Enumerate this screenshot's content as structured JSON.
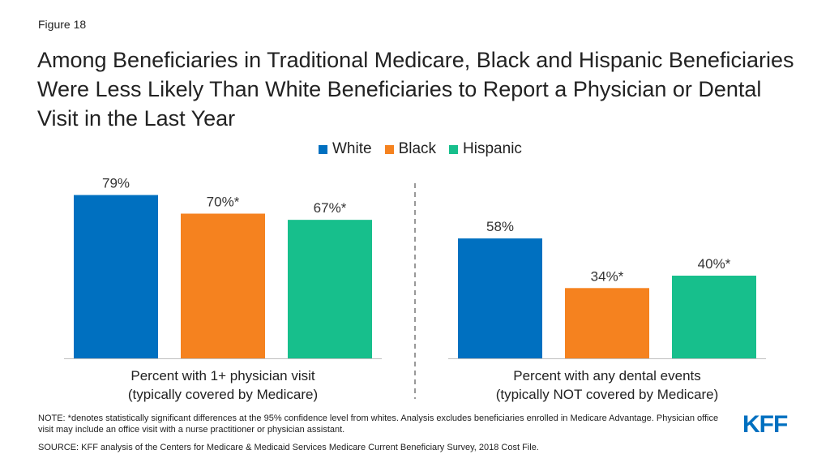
{
  "figure_label": "Figure 18",
  "title": "Among Beneficiaries in Traditional Medicare, Black and Hispanic Beneficiaries Were Less Likely Than White Beneficiaries to Report a Physician or Dental Visit in the Last Year",
  "note": "NOTE: *denotes statistically significant differences at the 95% confidence level from whites. Analysis excludes beneficiaries enrolled in Medicare Advantage. Physician office visit may include an office visit with a nurse practitioner or physician assistant.",
  "source": "SOURCE: KFF analysis of the Centers for Medicare & Medicaid Services Medicare Current Beneficiary Survey, 2018 Cost File.",
  "logo_text": "KFF",
  "colors": {
    "white": "#0070c0",
    "black": "#f5821f",
    "hispanic": "#17bf8c",
    "divider": "#999999",
    "axis": "#bfbfbf",
    "logo": "#0070c0"
  },
  "chart_data": {
    "type": "bar",
    "legend_position": "top",
    "grid": false,
    "ylim": [
      0,
      100
    ],
    "series_names": [
      "White",
      "Black",
      "Hispanic"
    ],
    "groups": [
      {
        "label_line1": "Percent with 1+ physician visit",
        "label_line2": "(typically covered by Medicare)",
        "values": [
          79,
          70,
          67
        ],
        "data_labels": [
          "79%",
          "70%*",
          "67%*"
        ]
      },
      {
        "label_line1": "Percent with any dental events",
        "label_line2": "(typically NOT covered by Medicare)",
        "values": [
          58,
          34,
          40
        ],
        "data_labels": [
          "58%",
          "34%*",
          "40%*"
        ]
      }
    ]
  }
}
